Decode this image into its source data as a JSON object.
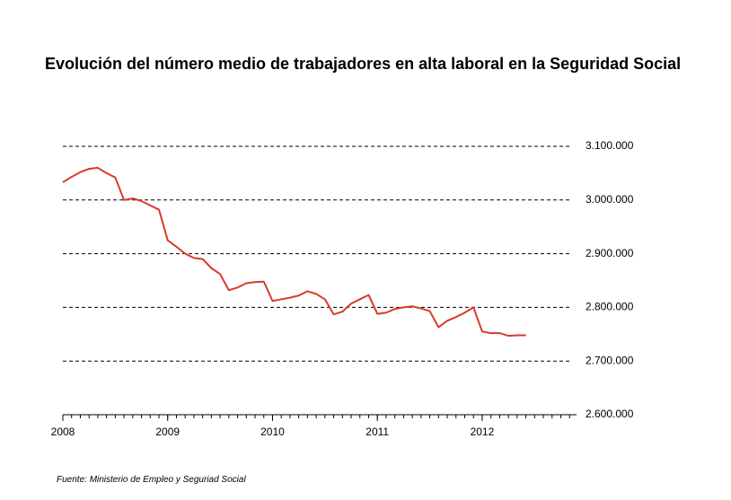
{
  "chart_data": {
    "type": "line",
    "title": "Evolución del número medio de trabajadores en alta laboral en la Seguridad Social",
    "source": "Fuente: Ministerio de Empleo y Seguriad Social",
    "x": [
      2008,
      2008.083,
      2008.167,
      2008.25,
      2008.333,
      2008.417,
      2008.5,
      2008.583,
      2008.667,
      2008.75,
      2008.833,
      2008.917,
      2009,
      2009.083,
      2009.167,
      2009.25,
      2009.333,
      2009.417,
      2009.5,
      2009.583,
      2009.667,
      2009.75,
      2009.833,
      2009.917,
      2010,
      2010.083,
      2010.167,
      2010.25,
      2010.333,
      2010.417,
      2010.5,
      2010.583,
      2010.667,
      2010.75,
      2010.833,
      2010.917,
      2011,
      2011.083,
      2011.167,
      2011.25,
      2011.333,
      2011.417,
      2011.5,
      2011.583,
      2011.667,
      2011.75,
      2011.833,
      2011.917,
      2012,
      2012.083,
      2012.167,
      2012.25,
      2012.333,
      2012.417
    ],
    "series": [
      {
        "color": "#d93a2b",
        "values": [
          3033000,
          3043000,
          3052000,
          3058000,
          3060000,
          3050000,
          3042000,
          3000000,
          3003000,
          2998000,
          2990000,
          2982000,
          2925000,
          2913000,
          2900000,
          2892000,
          2890000,
          2873000,
          2862000,
          2832000,
          2837000,
          2845000,
          2847000,
          2848000,
          2812000,
          2815000,
          2818000,
          2822000,
          2830000,
          2825000,
          2815000,
          2787000,
          2792000,
          2807000,
          2815000,
          2823000,
          2788000,
          2790000,
          2797000,
          2800000,
          2802000,
          2798000,
          2793000,
          2763000,
          2775000,
          2782000,
          2790000,
          2800000,
          2755000,
          2752000,
          2752000,
          2747000,
          2748000,
          2748000
        ]
      }
    ],
    "xlim": [
      2008,
      2012.9
    ],
    "xticks": [
      2008,
      2009,
      2010,
      2011,
      2012
    ],
    "ylim": [
      2600000,
      3100000
    ],
    "yticks": [
      {
        "value": 2600000,
        "label": "2.600.000"
      },
      {
        "value": 2700000,
        "label": "2.700.000"
      },
      {
        "value": 2800000,
        "label": "2.800.000"
      },
      {
        "value": 2900000,
        "label": "2.900.000"
      },
      {
        "value": 3000000,
        "label": "3.000.000"
      },
      {
        "value": 3100000,
        "label": "3.100.000"
      }
    ],
    "grid": true
  }
}
